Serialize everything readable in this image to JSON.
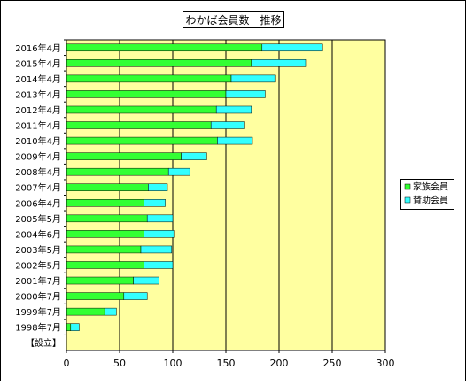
{
  "chart_data": {
    "type": "bar",
    "orientation": "horizontal",
    "stacked": true,
    "title": "わかば会員数　推移",
    "categories": [
      "2016年4月",
      "2015年4月",
      "2014年4月",
      "2013年4月",
      "2012年4月",
      "2011年4月",
      "2010年4月",
      "2009年4月",
      "2008年4月",
      "2007年4月",
      "2006年4月",
      "2005年5月",
      "2004年6月",
      "2003年5月",
      "2002年5月",
      "2001年7月",
      "2000年7月",
      "1999年7月",
      "1998年7月",
      "【設立】"
    ],
    "series": [
      {
        "name": "家族会員",
        "color": "#33ff33",
        "values": [
          184,
          174,
          155,
          150,
          141,
          136,
          142,
          108,
          96,
          77,
          73,
          76,
          73,
          70,
          73,
          63,
          54,
          36,
          4,
          0
        ]
      },
      {
        "name": "賛助会員",
        "color": "#33ffff",
        "values": [
          57,
          51,
          41,
          37,
          33,
          31,
          33,
          24,
          20,
          18,
          20,
          24,
          28,
          29,
          27,
          24,
          22,
          11,
          8,
          0
        ]
      }
    ],
    "xlim": [
      0,
      300
    ],
    "xticks": [
      0,
      50,
      100,
      150,
      200,
      250,
      300
    ],
    "xlabel": "",
    "ylabel": "",
    "grid": true,
    "legend": "right",
    "colors": {
      "plot_background": "#ffffa0",
      "border": "#000000"
    }
  }
}
